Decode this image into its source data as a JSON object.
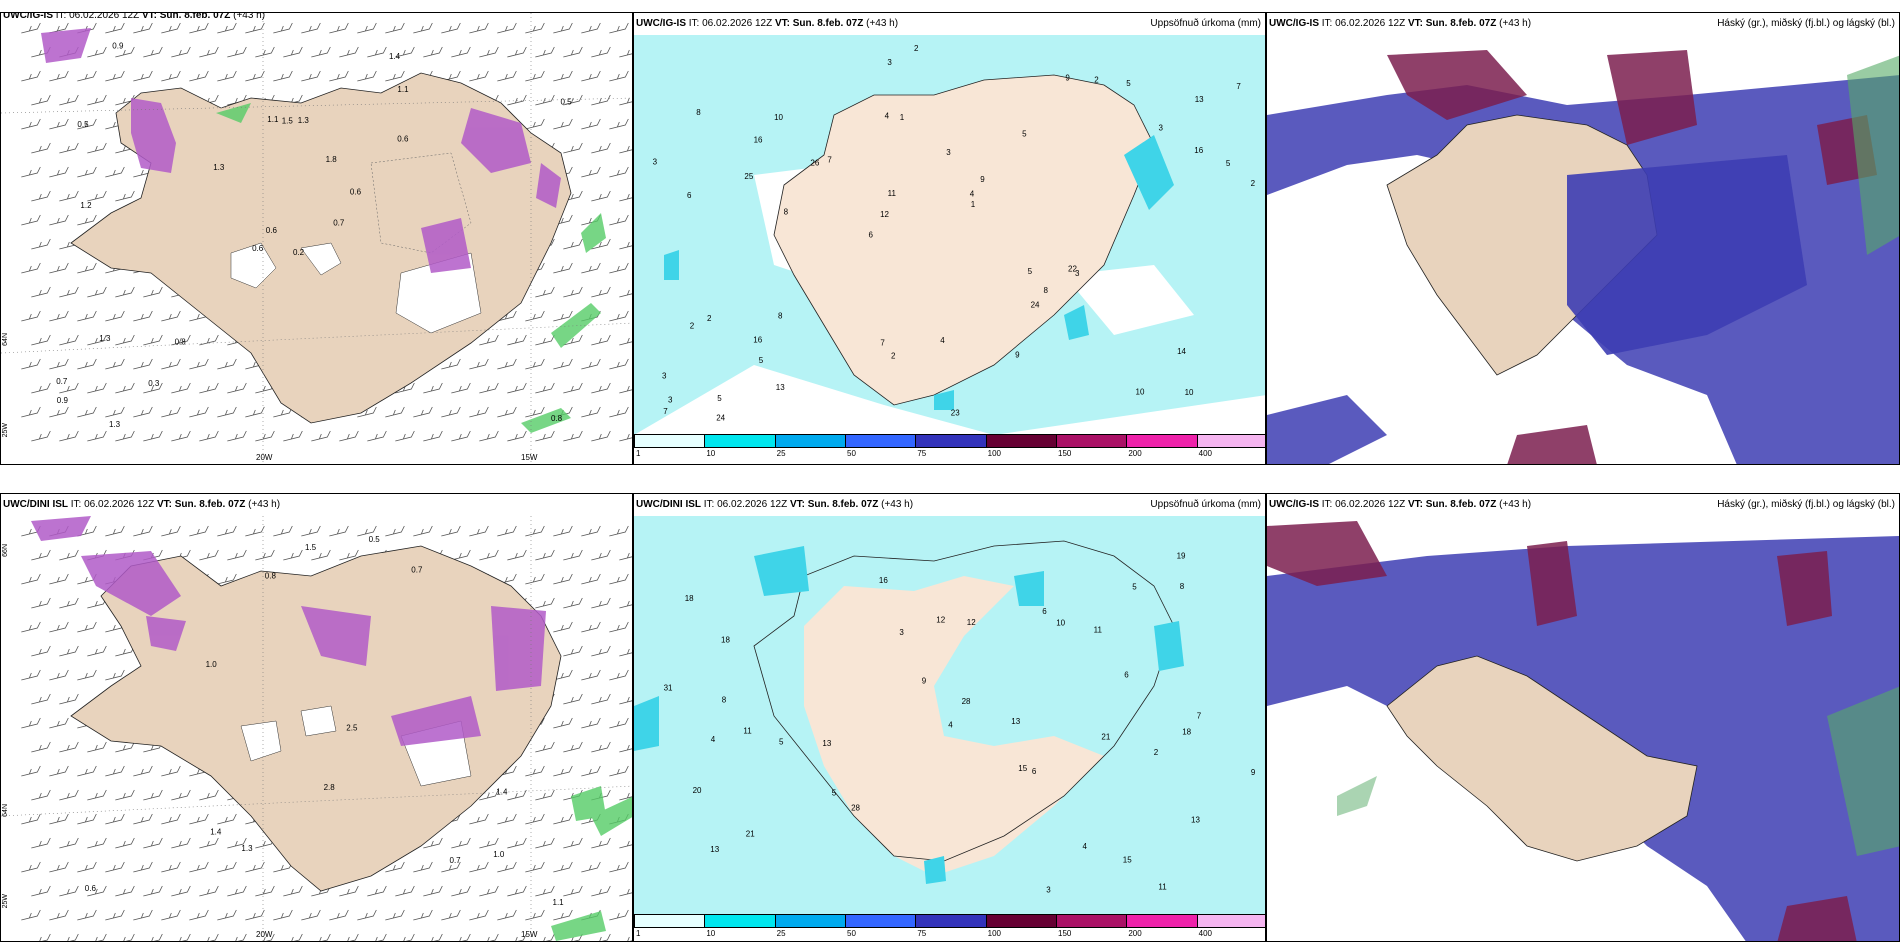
{
  "panels": {
    "p1": {
      "model": "UWC/IG-IS",
      "it_label": "IT:",
      "it": "06.02.2026 12Z",
      "vt_label": "VT:",
      "vt": "Sun. 8.feb. 07Z",
      "lead": "(+43 h)"
    },
    "p2": {
      "model": "UWC/IG-IS",
      "it_label": "IT:",
      "it": "06.02.2026 12Z",
      "vt_label": "VT:",
      "vt": "Sun. 8.feb. 07Z",
      "lead": "(+43 h)",
      "right": "Uppsöfnuð úrkoma (mm)"
    },
    "p3": {
      "model": "UWC/IG-IS",
      "it_label": "IT:",
      "it": "06.02.2026 12Z",
      "vt_label": "VT:",
      "vt": "Sun. 8.feb. 07Z",
      "lead": "(+43 h)",
      "right": "Háský (gr.), miðský (fj.bl.) og lágský (bl.)"
    },
    "p4": {
      "model": "UWC/DINI ISL",
      "it_label": "IT:",
      "it": "06.02.2026 12Z",
      "vt_label": "VT:",
      "vt": "Sun. 8.feb. 07Z",
      "lead": "(+43 h)"
    },
    "p5": {
      "model": "UWC/DINI ISL",
      "it_label": "IT:",
      "it": "06.02.2026 12Z",
      "vt_label": "VT:",
      "vt": "Sun. 8.feb. 07Z",
      "lead": "(+43 h)",
      "right": "Uppsöfnuð úrkoma (mm)"
    },
    "p6": {
      "model": "UWC/IG-IS",
      "it_label": "IT:",
      "it": "06.02.2026 12Z",
      "vt_label": "VT:",
      "vt": "Sun. 8.feb. 07Z",
      "lead": "(+43 h)",
      "right": "Háský (gr.), miðský (fj.bl.) og lágský (bl.)"
    }
  },
  "axes": {
    "lon_20": "20W",
    "lon_15": "15W",
    "lat_66": "66N",
    "lat_64": "64N",
    "lat_25": "25W"
  },
  "legend": {
    "labels": [
      "1",
      "10",
      "25",
      "50",
      "75",
      "100",
      "150",
      "200",
      "400"
    ],
    "colors": [
      "#e6ffff",
      "#00e6ee",
      "#00aaee",
      "#3366ff",
      "#3333bb",
      "#660033",
      "#aa1166",
      "#ee22aa",
      "#f5b5f0"
    ]
  },
  "colors": {
    "land": "#e8d3bd",
    "precip_light": "#b6f3f5",
    "precip_mid": "#3fd4e8",
    "snow": "#b15bc8",
    "rain": "#55cc66",
    "high_cloud": "#3d3db3",
    "mid_cloud": "#7b1f4f"
  },
  "precip_values_top": [
    "10",
    "6",
    "13",
    "6",
    "5",
    "5",
    "4",
    "3",
    "2",
    "7",
    "3",
    "5",
    "1",
    "9",
    "3",
    "8",
    "3",
    "2",
    "5",
    "16",
    "12",
    "7",
    "11",
    "10",
    "9",
    "8",
    "10",
    "14",
    "22",
    "23",
    "26",
    "25",
    "24",
    "13",
    "5",
    "4",
    "3",
    "2",
    "1",
    "2",
    "3",
    "7",
    "8",
    "9",
    "16",
    "24",
    "7",
    "4",
    "5",
    "2",
    "8",
    "3",
    "16",
    "2"
  ],
  "precip_values_bottom": [
    "11",
    "11",
    "15",
    "18",
    "13",
    "18",
    "21",
    "13",
    "11",
    "12",
    "10",
    "15",
    "28",
    "16",
    "13",
    "20",
    "21",
    "28",
    "31",
    "13",
    "19",
    "12",
    "6",
    "9",
    "7",
    "8",
    "5",
    "4",
    "9",
    "8",
    "6",
    "4",
    "5",
    "6",
    "3",
    "2",
    "18",
    "4",
    "5",
    "3"
  ],
  "snow_values_top": [
    "0.2",
    "0.5",
    "0.6",
    "0.7",
    "0.6",
    "0.8",
    "1.4",
    "1.3",
    "1.1",
    "0.7",
    "0.9",
    "0.8",
    "1.2",
    "0.5",
    "0.6",
    "0.6",
    "1.3",
    "1.1",
    "1.8",
    "1.3",
    "1.3",
    "0.9",
    "0.3",
    "1.5"
  ],
  "snow_values_bottom": [
    "0.6",
    "1.4",
    "2.5",
    "2.8",
    "0.8",
    "0.5",
    "1.0",
    "0.7",
    "0.7",
    "1.4",
    "1.1",
    "1.0",
    "1.3",
    "1.5"
  ]
}
